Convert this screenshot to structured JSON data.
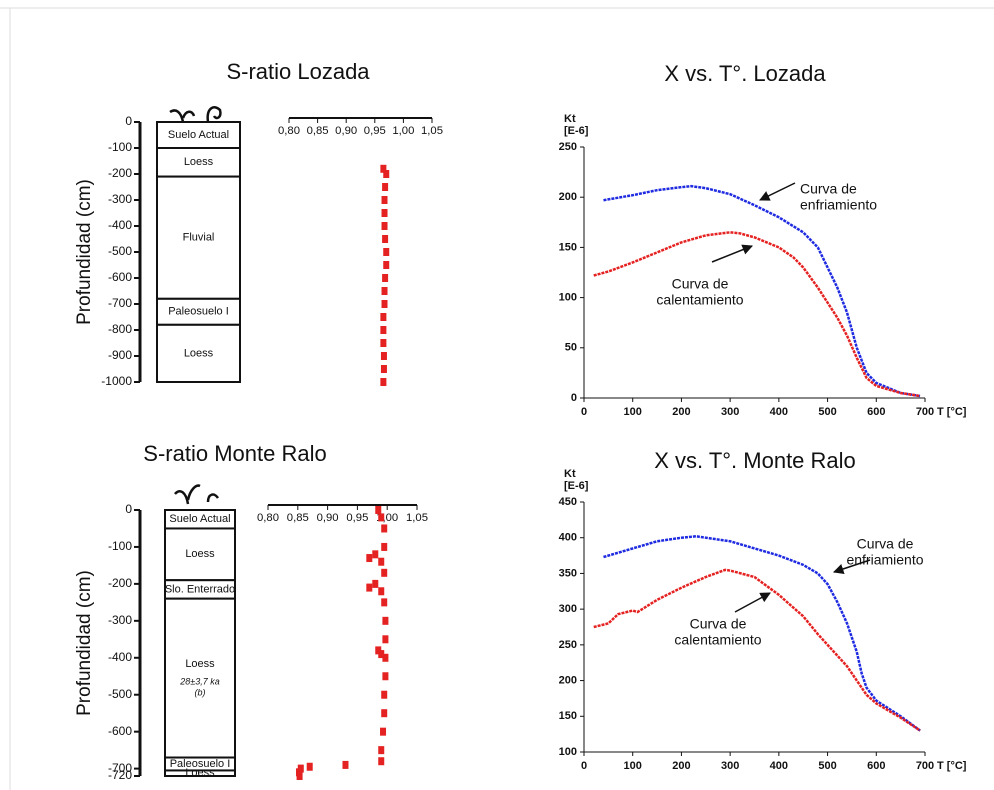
{
  "chart_data": [
    {
      "type": "profile",
      "title": "S-ratio Lozada",
      "y_label": "Profundidad (cm)",
      "ylim": [
        0,
        -1000
      ],
      "yticks": [
        0,
        -100,
        -200,
        -300,
        -400,
        -500,
        -600,
        -700,
        -800,
        -900,
        -1000
      ],
      "layers": [
        {
          "name": "Suelo Actual",
          "top": 0,
          "bottom": -100
        },
        {
          "name": "Loess",
          "top": -100,
          "bottom": -210
        },
        {
          "name": "Fluvial",
          "top": -210,
          "bottom": -680
        },
        {
          "name": "Paleosuelo I",
          "top": -680,
          "bottom": -780
        },
        {
          "name": "Loess",
          "top": -780,
          "bottom": -1000
        }
      ],
      "xlim": [
        0.8,
        1.05
      ],
      "xticks": [
        {
          "value": 0.8,
          "label": "0,80"
        },
        {
          "value": 0.85,
          "label": "0,85"
        },
        {
          "value": 0.9,
          "label": "0,90"
        },
        {
          "value": 0.95,
          "label": "0,95"
        },
        {
          "value": 1.0,
          "label": "1,00"
        },
        {
          "value": 1.05,
          "label": "1,05"
        }
      ],
      "color": "#e52222",
      "depth": [
        -180,
        -200,
        -250,
        -300,
        -350,
        -400,
        -450,
        -500,
        -550,
        -600,
        -650,
        -700,
        -750,
        -800,
        -850,
        -900,
        -950,
        -1000
      ],
      "values": [
        0.965,
        0.97,
        0.968,
        0.967,
        0.967,
        0.967,
        0.968,
        0.97,
        0.97,
        0.968,
        0.967,
        0.967,
        0.965,
        0.965,
        0.965,
        0.966,
        0.966,
        0.965
      ]
    },
    {
      "type": "line",
      "title": "X vs. T°. Lozada",
      "y_label": "Kt",
      "y_unit": "[E-6]",
      "x_label": "T [°C]",
      "xlim": [
        0,
        700
      ],
      "xticks": [
        0,
        100,
        200,
        300,
        400,
        500,
        600,
        700
      ],
      "ylim": [
        0,
        250
      ],
      "yticks": [
        0,
        50,
        100,
        150,
        200,
        250
      ],
      "series": [
        {
          "color": "#1f2be0",
          "x": [
            40,
            100,
            150,
            200,
            220,
            250,
            300,
            350,
            400,
            450,
            480,
            500,
            520,
            540,
            560,
            580,
            600,
            650,
            690
          ],
          "values": [
            197,
            202,
            207,
            210,
            211,
            209,
            203,
            192,
            180,
            165,
            150,
            130,
            110,
            85,
            50,
            25,
            15,
            5,
            2
          ]
        },
        {
          "color": "#e52222",
          "x": [
            20,
            50,
            100,
            150,
            200,
            250,
            300,
            320,
            350,
            400,
            430,
            450,
            480,
            500,
            520,
            540,
            560,
            580,
            600,
            650,
            690
          ],
          "values": [
            122,
            126,
            135,
            145,
            155,
            162,
            165,
            164,
            160,
            150,
            140,
            130,
            110,
            95,
            80,
            62,
            40,
            20,
            12,
            5,
            2
          ]
        }
      ],
      "annotations": [
        {
          "text": [
            "Curva de",
            "enfriamiento"
          ]
        },
        {
          "text": [
            "Curva de",
            "calentamiento"
          ]
        }
      ]
    },
    {
      "type": "profile",
      "title": "S-ratio Monte Ralo",
      "y_label": "Profundidad (cm)",
      "ylim": [
        0,
        -720
      ],
      "yticks": [
        0,
        -100,
        -200,
        -300,
        -400,
        -500,
        -600,
        -700,
        -720
      ],
      "layers": [
        {
          "name": "Suelo Actual",
          "top": 0,
          "bottom": -50
        },
        {
          "name": "Loess",
          "top": -50,
          "bottom": -190
        },
        {
          "name": "Slo. Enterrado",
          "top": -190,
          "bottom": -240
        },
        {
          "name": "Loess",
          "top": -240,
          "bottom": -670,
          "note": [
            "28±3,7 ka",
            "(b)"
          ]
        },
        {
          "name": "Paleosuelo I",
          "top": -670,
          "bottom": -705
        },
        {
          "name": "Loess",
          "top": -705,
          "bottom": -720
        }
      ],
      "xlim": [
        0.8,
        1.05
      ],
      "xticks": [
        {
          "value": 0.8,
          "label": "0,80"
        },
        {
          "value": 0.85,
          "label": "0,85"
        },
        {
          "value": 0.9,
          "label": "0,90"
        },
        {
          "value": 0.95,
          "label": "0,95"
        },
        {
          "value": 1.0,
          "label": "1,00"
        },
        {
          "value": 1.05,
          "label": "1,05"
        }
      ],
      "color": "#e52222",
      "depth": [
        0,
        -20,
        -50,
        -100,
        -120,
        -130,
        -140,
        -170,
        -200,
        -210,
        -220,
        -250,
        -300,
        -350,
        -380,
        -390,
        -400,
        -450,
        -500,
        -550,
        -600,
        -650,
        -680,
        -690,
        -695,
        -700,
        -710,
        -720
      ],
      "values": [
        0.985,
        0.99,
        0.995,
        0.995,
        0.98,
        0.97,
        0.99,
        0.995,
        0.98,
        0.97,
        0.99,
        0.995,
        0.997,
        0.997,
        0.985,
        0.99,
        0.997,
        0.997,
        0.995,
        0.995,
        0.993,
        0.99,
        0.99,
        0.93,
        0.87,
        0.855,
        0.852,
        0.853
      ]
    },
    {
      "type": "line",
      "title": "X vs. T°. Monte Ralo",
      "y_label": "Kt",
      "y_unit": "[E-6]",
      "x_label": "T [°C]",
      "xlim": [
        0,
        700
      ],
      "xticks": [
        0,
        100,
        200,
        300,
        400,
        500,
        600,
        700
      ],
      "ylim": [
        100,
        450
      ],
      "yticks": [
        100,
        150,
        200,
        250,
        300,
        350,
        400,
        450
      ],
      "series": [
        {
          "color": "#1f2be0",
          "x": [
            40,
            100,
            150,
            200,
            230,
            300,
            350,
            400,
            450,
            480,
            500,
            520,
            540,
            560,
            570,
            580,
            600,
            650,
            690
          ],
          "values": [
            373,
            385,
            395,
            400,
            402,
            395,
            385,
            375,
            362,
            350,
            335,
            310,
            280,
            240,
            210,
            190,
            172,
            150,
            130
          ]
        },
        {
          "color": "#e52222",
          "x": [
            20,
            50,
            70,
            100,
            110,
            150,
            200,
            250,
            290,
            300,
            350,
            400,
            450,
            480,
            500,
            540,
            560,
            580,
            600,
            650,
            690
          ],
          "values": [
            275,
            280,
            293,
            298,
            296,
            313,
            330,
            345,
            355,
            354,
            345,
            320,
            290,
            265,
            250,
            220,
            200,
            180,
            168,
            148,
            130
          ]
        }
      ],
      "annotations": [
        {
          "text": [
            "Curva de",
            "enfriamiento"
          ]
        },
        {
          "text": [
            "Curva de",
            "calentamiento"
          ]
        }
      ]
    }
  ]
}
